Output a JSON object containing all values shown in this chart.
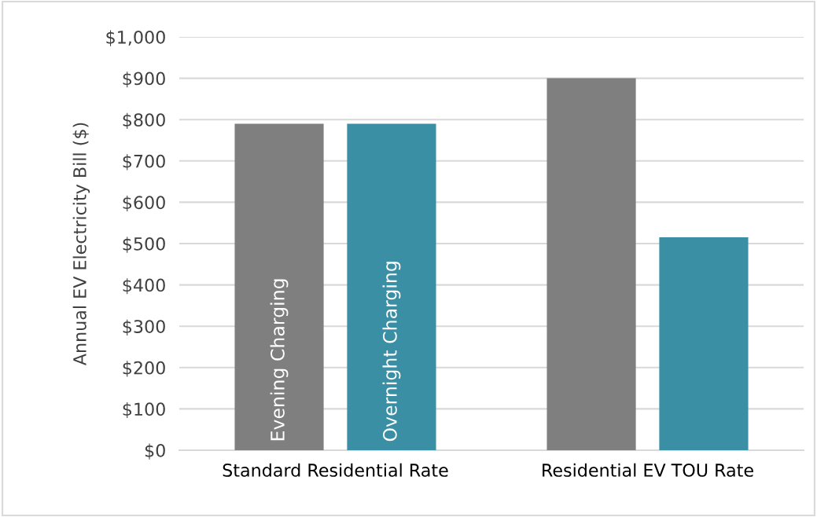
{
  "chart_data": {
    "type": "bar",
    "ylabel": "Annual EV Electricity Bill ($)",
    "categories": [
      "Standard Residential Rate",
      "Residential EV TOU Rate"
    ],
    "series": [
      {
        "name": "Evening Charging",
        "color": "#7f7f7f",
        "values": [
          790,
          900
        ]
      },
      {
        "name": "Overnight Charging",
        "color": "#3a8fa5",
        "values": [
          790,
          515
        ]
      }
    ],
    "ylim": [
      0,
      1000
    ],
    "yticks": [
      {
        "value": 0,
        "label": "$0"
      },
      {
        "value": 100,
        "label": "$100"
      },
      {
        "value": 200,
        "label": "$200"
      },
      {
        "value": 300,
        "label": "$300"
      },
      {
        "value": 400,
        "label": "$400"
      },
      {
        "value": 500,
        "label": "$500"
      },
      {
        "value": 600,
        "label": "$600"
      },
      {
        "value": 700,
        "label": "$700"
      },
      {
        "value": 800,
        "label": "$800"
      },
      {
        "value": 900,
        "label": "$900"
      },
      {
        "value": 1000,
        "label": "$1,000"
      }
    ],
    "grid": "y",
    "legend": false
  }
}
